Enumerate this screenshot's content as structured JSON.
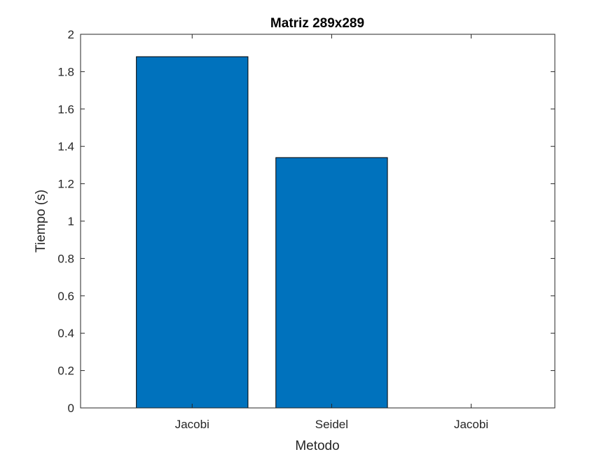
{
  "chart_data": {
    "type": "bar",
    "title": "Matriz 289x289",
    "xlabel": "Metodo",
    "ylabel": "Tiempo (s)",
    "categories": [
      "Jacobi",
      "Seidel",
      "Jacobi"
    ],
    "values": [
      1.88,
      1.34,
      0
    ],
    "ylim": [
      0,
      2
    ],
    "yticks": [
      "0",
      "0.2",
      "0.4",
      "0.6",
      "0.8",
      "1",
      "1.2",
      "1.4",
      "1.6",
      "1.8",
      "2"
    ],
    "grid": false,
    "bar_color": "#0072BD"
  }
}
